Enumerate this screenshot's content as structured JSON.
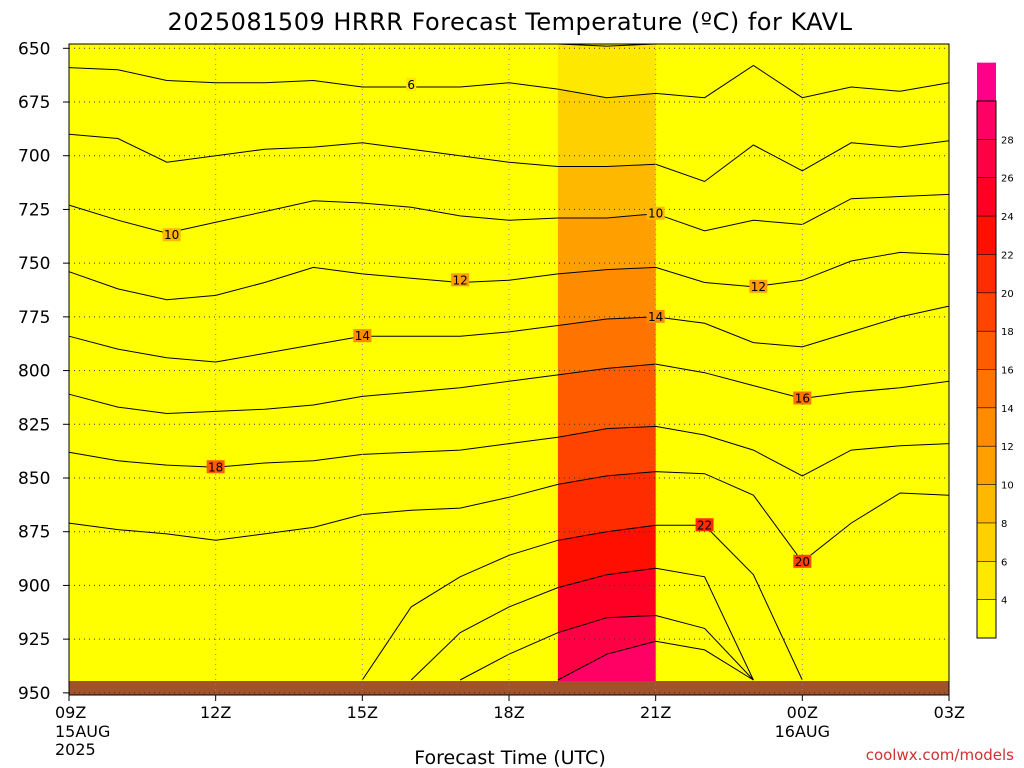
{
  "title": "2025081509 HRRR Forecast Temperature (ºC) for KAVL",
  "credit": "coolwx.com/models",
  "chart_data": {
    "type": "contour",
    "title": "2025081509 HRRR Forecast Temperature (ºC) for KAVL",
    "xlabel": "Forecast Time (UTC)",
    "ylabel": "",
    "x_ticks": [
      {
        "hour": 0,
        "label": "09Z",
        "sub": [
          "15AUG",
          "2025"
        ]
      },
      {
        "hour": 3,
        "label": "12Z",
        "sub": []
      },
      {
        "hour": 6,
        "label": "15Z",
        "sub": []
      },
      {
        "hour": 9,
        "label": "18Z",
        "sub": []
      },
      {
        "hour": 12,
        "label": "21Z",
        "sub": []
      },
      {
        "hour": 15,
        "label": "00Z",
        "sub": [
          "16AUG"
        ]
      },
      {
        "hour": 18,
        "label": "03Z",
        "sub": []
      }
    ],
    "x_range_hours": [
      0,
      18
    ],
    "y_axis": "pressure_hPa",
    "y_ticks": [
      650,
      675,
      700,
      725,
      750,
      775,
      800,
      825,
      850,
      875,
      900,
      925,
      950
    ],
    "y_range": [
      648,
      951
    ],
    "surface_pressure_hPa": 944,
    "grid": true,
    "contour_interval": 2,
    "contours": [
      {
        "level": 4,
        "hours": [
          10,
          11,
          12
        ],
        "p": [
          648,
          649,
          648
        ]
      },
      {
        "level": 6,
        "hours": [
          0,
          1,
          2,
          3,
          4,
          5,
          6,
          7,
          8,
          9,
          10,
          11,
          12,
          13,
          14,
          15,
          16,
          17,
          18
        ],
        "p": [
          659,
          660,
          665,
          666,
          666,
          665,
          668,
          668,
          668,
          666,
          669,
          673,
          671,
          673,
          658,
          673,
          668,
          670,
          666
        ]
      },
      {
        "level": 8,
        "hours": [
          0,
          1,
          2,
          3,
          4,
          5,
          6,
          7,
          8,
          9,
          10,
          11,
          12,
          13,
          14,
          15,
          16,
          17,
          18
        ],
        "p": [
          690,
          692,
          703,
          700,
          697,
          696,
          694,
          697,
          700,
          703,
          705,
          705,
          704,
          712,
          695,
          707,
          694,
          696,
          693
        ]
      },
      {
        "level": 10,
        "hours": [
          0,
          1,
          2,
          3,
          4,
          5,
          6,
          7,
          8,
          9,
          10,
          11,
          12,
          13,
          14,
          15,
          16,
          17,
          18
        ],
        "p": [
          723,
          730,
          736,
          731,
          726,
          721,
          722,
          724,
          728,
          730,
          729,
          729,
          727,
          735,
          730,
          732,
          720,
          719,
          718
        ]
      },
      {
        "level": 12,
        "hours": [
          0,
          1,
          2,
          3,
          4,
          5,
          6,
          7,
          8,
          9,
          10,
          11,
          12,
          13,
          14,
          15,
          16,
          17,
          18
        ],
        "p": [
          754,
          762,
          767,
          765,
          759,
          752,
          755,
          757,
          759,
          758,
          755,
          753,
          752,
          759,
          761,
          758,
          749,
          745,
          746
        ]
      },
      {
        "level": 14,
        "hours": [
          0,
          1,
          2,
          3,
          4,
          5,
          6,
          7,
          8,
          9,
          10,
          11,
          12,
          13,
          14,
          15,
          16,
          17,
          18
        ],
        "p": [
          784,
          790,
          794,
          796,
          792,
          788,
          784,
          784,
          784,
          782,
          779,
          776,
          775,
          778,
          787,
          789,
          782,
          775,
          770
        ]
      },
      {
        "level": 16,
        "hours": [
          0,
          1,
          2,
          3,
          4,
          5,
          6,
          7,
          8,
          9,
          10,
          11,
          12,
          13,
          14,
          15,
          16,
          17,
          18
        ],
        "p": [
          811,
          817,
          820,
          819,
          818,
          816,
          812,
          810,
          808,
          805,
          802,
          799,
          797,
          801,
          807,
          813,
          810,
          808,
          805
        ]
      },
      {
        "level": 18,
        "hours": [
          0,
          1,
          2,
          3,
          4,
          5,
          6,
          7,
          8,
          9,
          10,
          11,
          12,
          13,
          14,
          15,
          16,
          17,
          18
        ],
        "p": [
          838,
          842,
          844,
          845,
          843,
          842,
          839,
          838,
          837,
          834,
          831,
          827,
          826,
          830,
          837,
          849,
          837,
          835,
          834
        ]
      },
      {
        "level": 20,
        "hours": [
          0,
          1,
          2,
          3,
          4,
          5,
          6,
          7,
          8,
          9,
          10,
          11,
          12,
          13,
          14,
          15,
          16,
          17,
          18
        ],
        "p": [
          871,
          874,
          876,
          879,
          876,
          873,
          867,
          865,
          864,
          859,
          853,
          849,
          847,
          848,
          858,
          889,
          871,
          857,
          858
        ]
      },
      {
        "level": 22,
        "hours": [
          6,
          7,
          8,
          9,
          10,
          11,
          12,
          13,
          14,
          15
        ],
        "p": [
          944,
          910,
          896,
          886,
          879,
          875,
          872,
          872,
          895,
          944
        ]
      },
      {
        "level": 24,
        "hours": [
          7,
          8,
          9,
          10,
          11,
          12,
          13,
          14
        ],
        "p": [
          944,
          922,
          910,
          901,
          895,
          892,
          896,
          944
        ]
      },
      {
        "level": 26,
        "hours": [
          8,
          9,
          10,
          11,
          12,
          13,
          14
        ],
        "p": [
          944,
          932,
          922,
          915,
          914,
          920,
          944
        ]
      },
      {
        "level": 28,
        "hours": [
          10,
          11,
          12,
          13,
          14
        ],
        "p": [
          944,
          932,
          926,
          930,
          944
        ]
      }
    ],
    "contour_labels": [
      {
        "text": "6",
        "hour": 7.0,
        "p": 667
      },
      {
        "text": "10",
        "hour": 2.1,
        "p": 737
      },
      {
        "text": "10",
        "hour": 12.0,
        "p": 727
      },
      {
        "text": "12",
        "hour": 8.0,
        "p": 758
      },
      {
        "text": "12",
        "hour": 14.1,
        "p": 761
      },
      {
        "text": "14",
        "hour": 6.0,
        "p": 784
      },
      {
        "text": "14",
        "hour": 12.0,
        "p": 775
      },
      {
        "text": "16",
        "hour": 15.0,
        "p": 813
      },
      {
        "text": "18",
        "hour": 3.0,
        "p": 845
      },
      {
        "text": "22",
        "hour": 13.0,
        "p": 872
      },
      {
        "text": "20",
        "hour": 15.0,
        "p": 889
      }
    ],
    "colorbar": {
      "ticks": [
        4,
        6,
        8,
        10,
        12,
        14,
        16,
        18,
        20,
        22,
        24,
        26,
        28
      ],
      "range": [
        2,
        30
      ],
      "colors": [
        "#ffff00",
        "#ffe800",
        "#ffd000",
        "#ffb800",
        "#ffa000",
        "#ff8c00",
        "#ff7400",
        "#ff5c00",
        "#ff4400",
        "#ff2c00",
        "#ff0f00",
        "#ff0024",
        "#ff0044",
        "#ff0064",
        "#ff0088"
      ]
    }
  }
}
